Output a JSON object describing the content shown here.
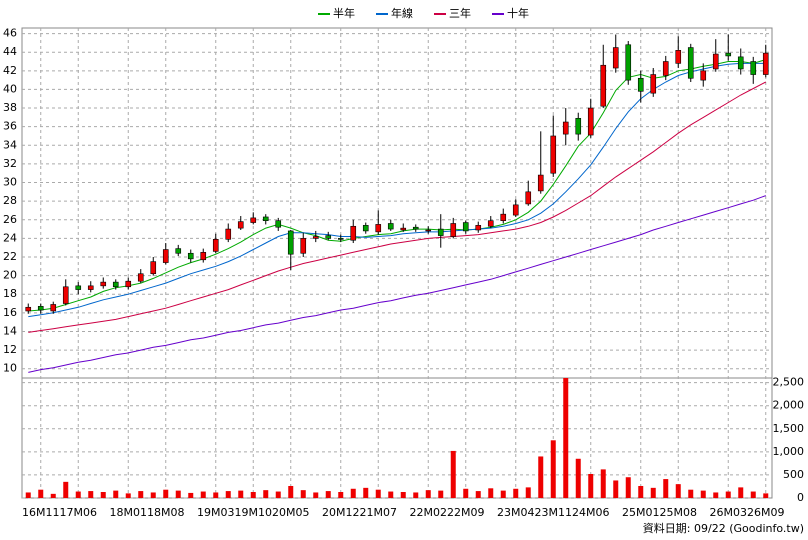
{
  "chart_data": {
    "type": "candlestick",
    "categories": [
      null,
      "16M11",
      null,
      null,
      "17M06",
      null,
      null,
      null,
      "18M01",
      null,
      null,
      "18M08",
      null,
      null,
      null,
      "19M03",
      null,
      null,
      "19M10",
      null,
      null,
      "20M05",
      null,
      null,
      null,
      "20M12",
      null,
      null,
      "21M07",
      null,
      null,
      null,
      "22M02",
      null,
      null,
      "22M09",
      null,
      null,
      null,
      "23M04",
      null,
      null,
      "23M11",
      null,
      null,
      "24M06",
      null,
      null,
      null,
      "25M01",
      null,
      null,
      "25M08",
      null,
      null,
      null,
      "26M03",
      null,
      null,
      "26M09"
    ],
    "open": [
      16.2,
      16.7,
      16.2,
      17.0,
      18.9,
      18.5,
      18.9,
      19.3,
      18.8,
      19.4,
      20.2,
      21.4,
      22.9,
      22.4,
      21.7,
      22.6,
      23.9,
      25.1,
      25.7,
      26.3,
      25.9,
      24.8,
      22.4,
      24.0,
      24.3,
      24.0,
      23.8,
      25.4,
      24.7,
      25.6,
      24.9,
      25.2,
      24.9,
      25.0,
      24.2,
      25.7,
      24.9,
      25.3,
      25.9,
      26.5,
      27.7,
      29.1,
      31.0,
      35.2,
      36.9,
      35.1,
      38.2,
      42.3,
      44.8,
      41.2,
      39.6,
      41.5,
      42.8,
      44.5,
      41.0,
      42.2,
      43.9,
      43.5,
      43.0,
      41.6
    ],
    "high": [
      17.0,
      17.0,
      17.2,
      19.6,
      19.3,
      19.4,
      19.8,
      19.6,
      19.8,
      20.7,
      22.0,
      23.5,
      23.3,
      22.8,
      22.9,
      24.5,
      25.6,
      26.4,
      26.8,
      26.6,
      26.2,
      24.9,
      24.6,
      24.8,
      24.7,
      24.4,
      26.0,
      25.7,
      27.0,
      26.0,
      25.6,
      25.5,
      25.3,
      26.6,
      26.2,
      25.9,
      25.8,
      26.4,
      27.2,
      28.2,
      30.2,
      35.5,
      37.2,
      38.0,
      37.5,
      39.0,
      44.8,
      45.9,
      45.2,
      42.0,
      42.3,
      43.6,
      45.7,
      44.9,
      42.8,
      45.4,
      45.9,
      44.4,
      43.5,
      44.8
    ],
    "low": [
      15.9,
      15.9,
      15.9,
      16.8,
      18.0,
      18.2,
      18.6,
      18.5,
      18.5,
      19.2,
      20.0,
      21.2,
      22.1,
      21.4,
      21.4,
      22.4,
      23.6,
      24.9,
      25.5,
      25.5,
      24.8,
      20.6,
      22.0,
      23.6,
      23.8,
      23.6,
      23.5,
      24.5,
      24.4,
      24.8,
      24.7,
      24.7,
      24.5,
      23.0,
      24.0,
      24.5,
      24.6,
      25.1,
      25.6,
      26.3,
      27.5,
      28.8,
      30.6,
      34.0,
      34.5,
      34.8,
      38.0,
      41.8,
      40.5,
      38.6,
      39.2,
      41.0,
      42.3,
      40.8,
      40.3,
      41.9,
      43.1,
      41.6,
      40.6,
      41.3
    ],
    "close": [
      16.6,
      16.3,
      16.9,
      18.8,
      18.5,
      18.9,
      19.3,
      18.8,
      19.4,
      20.2,
      21.5,
      22.8,
      22.4,
      21.8,
      22.5,
      23.9,
      25.0,
      25.8,
      26.2,
      25.9,
      25.2,
      22.3,
      24.0,
      24.2,
      24.0,
      23.9,
      25.3,
      24.8,
      25.5,
      25.0,
      25.1,
      25.0,
      24.9,
      24.3,
      25.6,
      24.8,
      25.4,
      25.9,
      26.6,
      27.6,
      29.0,
      30.8,
      35.0,
      36.5,
      35.2,
      38.0,
      42.6,
      44.5,
      41.0,
      39.8,
      41.6,
      43.0,
      44.2,
      41.2,
      42.0,
      43.8,
      43.6,
      42.2,
      41.6,
      43.9
    ],
    "volume": [
      120,
      180,
      90,
      350,
      140,
      150,
      130,
      160,
      100,
      150,
      120,
      180,
      160,
      110,
      140,
      120,
      150,
      160,
      130,
      170,
      140,
      260,
      170,
      120,
      150,
      130,
      200,
      220,
      180,
      140,
      130,
      120,
      170,
      160,
      1020,
      200,
      150,
      210,
      160,
      200,
      230,
      900,
      1250,
      2600,
      850,
      520,
      620,
      380,
      450,
      260,
      220,
      410,
      300,
      180,
      160,
      120,
      140,
      230,
      140,
      100
    ],
    "up_color": "#ee0000",
    "down_color": "#00a000",
    "volume_color": "#ee0000",
    "series": [
      {
        "name": "半年",
        "color": "#00aa00",
        "values": [
          16.2,
          16.3,
          16.5,
          16.9,
          17.3,
          17.7,
          18.3,
          18.7,
          18.9,
          19.2,
          19.7,
          20.3,
          20.9,
          21.4,
          21.8,
          22.3,
          22.9,
          23.6,
          24.4,
          25.1,
          25.5,
          25.1,
          24.6,
          24.3,
          23.8,
          23.7,
          24.0,
          24.2,
          24.4,
          24.5,
          24.8,
          25.0,
          25.0,
          24.9,
          25.0,
          24.9,
          25.0,
          25.2,
          25.5,
          26.0,
          26.8,
          28.0,
          29.8,
          31.8,
          33.9,
          35.3,
          37.5,
          39.9,
          41.3,
          41.6,
          41.2,
          41.4,
          42.0,
          42.2,
          42.5,
          42.7,
          43.0,
          43.0,
          42.8,
          43.2
        ]
      },
      {
        "name": "年線",
        "color": "#0066cc",
        "values": [
          15.6,
          15.8,
          16.0,
          16.3,
          16.6,
          17.0,
          17.4,
          17.7,
          18.0,
          18.4,
          18.8,
          19.2,
          19.7,
          20.2,
          20.6,
          21.0,
          21.5,
          22.1,
          22.8,
          23.5,
          24.2,
          24.6,
          24.6,
          24.5,
          24.4,
          24.2,
          24.2,
          24.1,
          24.2,
          24.3,
          24.5,
          24.6,
          24.7,
          24.7,
          24.8,
          24.9,
          25.0,
          25.1,
          25.3,
          25.6,
          26.0,
          26.7,
          27.7,
          29.0,
          30.4,
          31.9,
          33.8,
          35.8,
          37.6,
          39.0,
          40.0,
          40.8,
          41.5,
          41.9,
          42.2,
          42.5,
          42.7,
          42.8,
          42.8,
          42.8
        ]
      },
      {
        "name": "三年",
        "color": "#cc0044",
        "values": [
          13.9,
          14.1,
          14.3,
          14.5,
          14.7,
          14.9,
          15.1,
          15.3,
          15.6,
          15.9,
          16.2,
          16.5,
          16.9,
          17.3,
          17.7,
          18.1,
          18.5,
          19.0,
          19.5,
          20.0,
          20.5,
          20.9,
          21.3,
          21.6,
          21.9,
          22.2,
          22.5,
          22.8,
          23.1,
          23.4,
          23.6,
          23.8,
          24.0,
          24.1,
          24.2,
          24.3,
          24.4,
          24.6,
          24.8,
          25.0,
          25.3,
          25.7,
          26.3,
          27.0,
          27.8,
          28.6,
          29.6,
          30.6,
          31.5,
          32.4,
          33.3,
          34.3,
          35.3,
          36.2,
          37.0,
          37.8,
          38.6,
          39.4,
          40.1,
          40.8
        ]
      },
      {
        "name": "十年",
        "color": "#6600cc",
        "values": [
          9.6,
          9.9,
          10.1,
          10.4,
          10.7,
          10.9,
          11.2,
          11.5,
          11.7,
          12.0,
          12.3,
          12.5,
          12.8,
          13.1,
          13.3,
          13.6,
          13.9,
          14.1,
          14.4,
          14.7,
          14.9,
          15.2,
          15.5,
          15.7,
          16.0,
          16.3,
          16.5,
          16.8,
          17.1,
          17.3,
          17.6,
          17.9,
          18.1,
          18.4,
          18.7,
          19.0,
          19.3,
          19.6,
          20.0,
          20.4,
          20.8,
          21.2,
          21.6,
          22.0,
          22.4,
          22.8,
          23.2,
          23.6,
          24.0,
          24.4,
          24.9,
          25.3,
          25.7,
          26.1,
          26.5,
          26.9,
          27.3,
          27.7,
          28.1,
          28.6
        ]
      }
    ],
    "ylim": [
      9,
      46.6
    ],
    "yticks": [
      10,
      12,
      14,
      16,
      18,
      20,
      22,
      24,
      26,
      28,
      30,
      32,
      34,
      36,
      38,
      40,
      42,
      44,
      46
    ],
    "y2lim": [
      0,
      2600
    ],
    "y2ticks": [
      0,
      500,
      {
        "value": 1000,
        "label": "1,000"
      },
      {
        "value": 1500,
        "label": "1,500"
      },
      {
        "value": 2000,
        "label": "2,000"
      },
      {
        "value": 2500,
        "label": "2,500"
      }
    ],
    "grid": true,
    "note": "資料日期: 09/22 (Goodinfo.tw)"
  }
}
